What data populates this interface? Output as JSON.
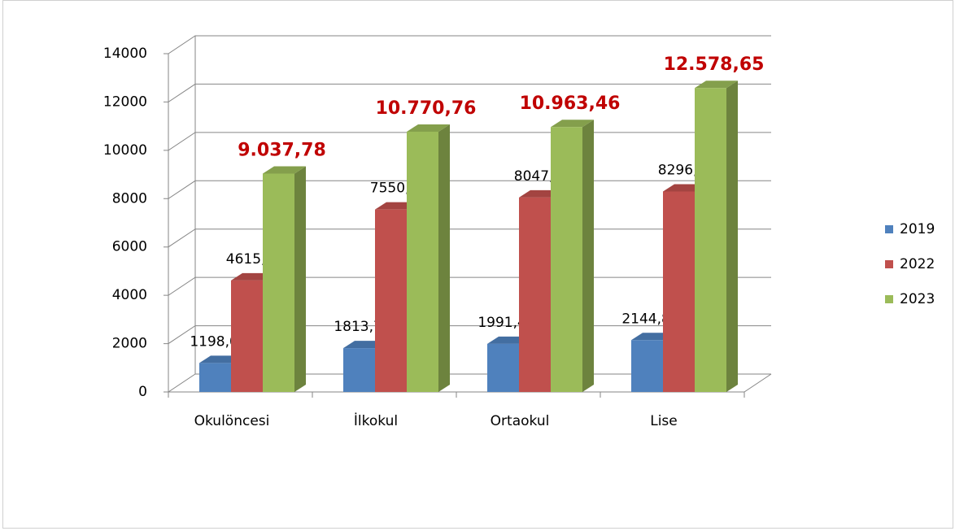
{
  "chart_data": {
    "type": "bar3d",
    "categories": [
      "Okulöncesi",
      "İlkokul",
      "Ortaokul",
      "Lise"
    ],
    "series": [
      {
        "name": "2019",
        "color": "#4f81bd",
        "values": [
          1198.07,
          1813.77,
          1991.48,
          2144.83
        ],
        "value_labels": [
          "1198,07",
          "1813,77",
          "1991,48",
          "2144,83"
        ]
      },
      {
        "name": "2022",
        "color": "#c0504d",
        "values": [
          4615.8,
          7550.1,
          8047.4,
          8296.6
        ],
        "value_labels": [
          "4615,8",
          "7550,1",
          "8047,4",
          "8296,6"
        ]
      },
      {
        "name": "2023",
        "color": "#9bbb59",
        "values": [
          9037.78,
          10770.76,
          10963.46,
          12578.65
        ],
        "value_labels": [
          "9.037,78",
          "10.770,76",
          "10.963,46",
          "12.578,65"
        ]
      }
    ],
    "ylim": [
      0,
      14000
    ],
    "yticks": [
      0,
      2000,
      4000,
      6000,
      8000,
      10000,
      12000,
      14000
    ],
    "grid": true,
    "legend": "right"
  }
}
